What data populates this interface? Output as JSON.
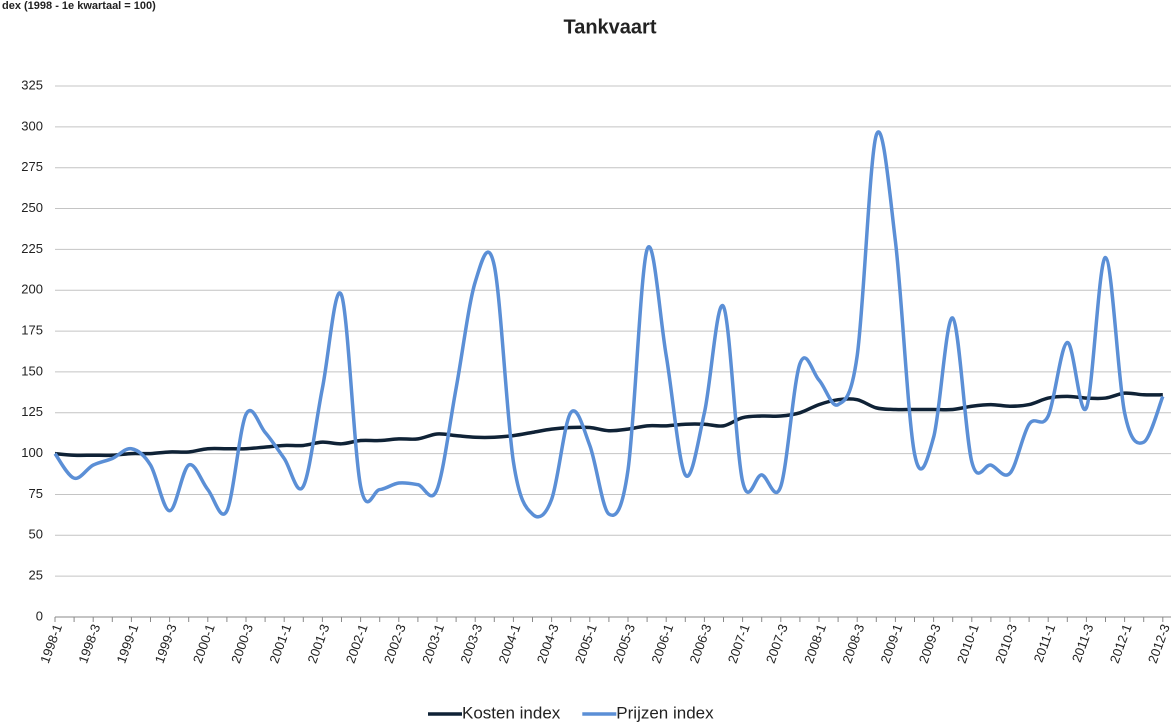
{
  "chart_data": {
    "type": "line",
    "title": "Tankvaart",
    "y_axis_label": "dex (1998 - 1e kwartaal = 100)",
    "categories": [
      "1998-1",
      null,
      "1998-3",
      null,
      "1999-1",
      null,
      "1999-3",
      null,
      "2000-1",
      null,
      "2000-3",
      null,
      "2001-1",
      null,
      "2001-3",
      null,
      "2002-1",
      null,
      "2002-3",
      null,
      "2003-1",
      null,
      "2003-3",
      null,
      "2004-1",
      null,
      "2004-3",
      null,
      "2005-1",
      null,
      "2005-3",
      null,
      "2006-1",
      null,
      "2006-3",
      null,
      "2007-1",
      null,
      "2007-3",
      null,
      "2008-1",
      null,
      "2008-3",
      null,
      "2009-1",
      null,
      "2009-3",
      null,
      "2010-1",
      null,
      "2010-3",
      null,
      "2011-1",
      null,
      "2011-3",
      null,
      "2012-1",
      null,
      "2012-3"
    ],
    "series": [
      {
        "name": "Kosten index",
        "color": "#0f2236",
        "values": [
          100,
          99,
          99,
          99,
          100,
          100,
          101,
          101,
          103,
          103,
          103,
          104,
          105,
          105,
          107,
          106,
          108,
          108,
          109,
          109,
          112,
          111,
          110,
          110,
          111,
          113,
          115,
          116,
          116,
          114,
          115,
          117,
          117,
          118,
          118,
          117,
          122,
          123,
          123,
          125,
          130,
          133,
          133,
          128,
          127,
          127,
          127,
          127,
          129,
          130,
          129,
          130,
          134,
          135,
          134,
          134,
          137,
          136,
          136
        ]
      },
      {
        "name": "Prijzen index",
        "color": "#5b8fd6",
        "values": [
          100,
          85,
          93,
          97,
          103,
          93,
          65,
          93,
          78,
          65,
          124,
          113,
          97,
          80,
          140,
          197,
          80,
          78,
          82,
          81,
          78,
          140,
          205,
          215,
          95,
          63,
          72,
          125,
          105,
          63,
          90,
          225,
          160,
          87,
          125,
          190,
          83,
          87,
          80,
          155,
          145,
          130,
          160,
          295,
          230,
          100,
          110,
          183,
          95,
          93,
          88,
          118,
          123,
          168,
          128,
          220,
          125,
          107,
          135
        ]
      }
    ],
    "ylim": [
      0,
      325
    ],
    "yticks": [
      0,
      25,
      50,
      75,
      100,
      125,
      150,
      175,
      200,
      225,
      250,
      275,
      300,
      325
    ],
    "grid": true,
    "legend": "bottom"
  }
}
